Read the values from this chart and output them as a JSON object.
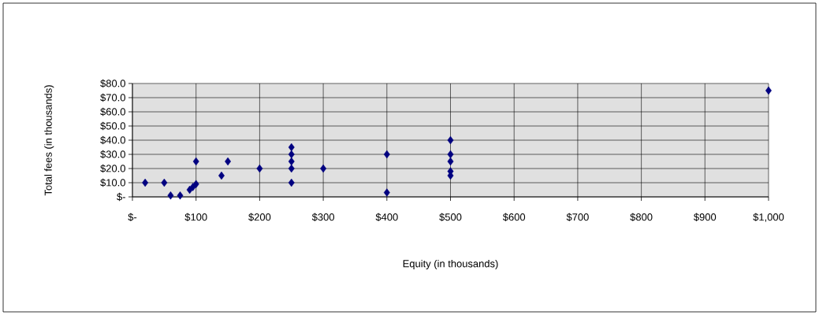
{
  "chart_data": {
    "type": "scatter",
    "xlabel": "Equity (in thousands)",
    "ylabel": "Total fees (in thousands)",
    "x": [
      20,
      50,
      60,
      75,
      90,
      95,
      100,
      100,
      140,
      150,
      200,
      250,
      250,
      250,
      250,
      250,
      300,
      400,
      400,
      500,
      500,
      500,
      500,
      500,
      1000
    ],
    "values": [
      10,
      10,
      1,
      1,
      5,
      7,
      9,
      25,
      15,
      25,
      20,
      35,
      30,
      25,
      20,
      10,
      20,
      30,
      3,
      40,
      30,
      25,
      18,
      15,
      75
    ],
    "color": "#000080",
    "marker": "diamond",
    "grid": true,
    "xlim": [
      0,
      1000
    ],
    "ylim": [
      0,
      80
    ],
    "xticks": [
      {
        "value": 0,
        "label": "$-"
      },
      {
        "value": 100,
        "label": "$100"
      },
      {
        "value": 200,
        "label": "$200"
      },
      {
        "value": 300,
        "label": "$300"
      },
      {
        "value": 400,
        "label": "$400"
      },
      {
        "value": 500,
        "label": "$500"
      },
      {
        "value": 600,
        "label": "$600"
      },
      {
        "value": 700,
        "label": "$700"
      },
      {
        "value": 800,
        "label": "$800"
      },
      {
        "value": 900,
        "label": "$900"
      },
      {
        "value": 1000,
        "label": "$1,000"
      }
    ],
    "yticks": [
      {
        "value": 0,
        "label": "$-"
      },
      {
        "value": 10,
        "label": "$10.0"
      },
      {
        "value": 20,
        "label": "$20.0"
      },
      {
        "value": 30,
        "label": "$30.0"
      },
      {
        "value": 40,
        "label": "$40.0"
      },
      {
        "value": 50,
        "label": "$50.0"
      },
      {
        "value": 60,
        "label": "$60.0"
      },
      {
        "value": 70,
        "label": "$70.0"
      },
      {
        "value": 80,
        "label": "$80.0"
      }
    ]
  }
}
